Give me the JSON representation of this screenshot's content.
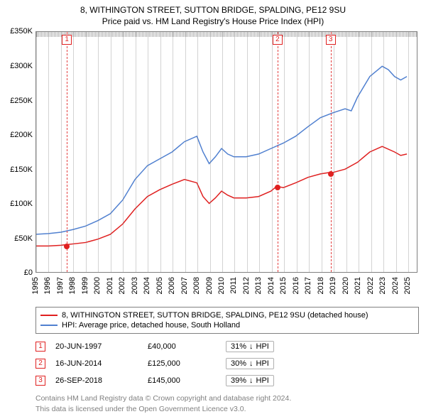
{
  "title": {
    "line1": "8, WITHINGTON STREET, SUTTON BRIDGE, SPALDING, PE12 9SU",
    "line2": "Price paid vs. HM Land Registry's House Price Index (HPI)"
  },
  "chart": {
    "type": "line",
    "background_color": "#ffffff",
    "border_color": "#808080",
    "grid_color": "#808080",
    "xlim": [
      1995,
      2025.8
    ],
    "ylim": [
      0,
      350000
    ],
    "ytick_step": 50000,
    "yticks": [
      "£0",
      "£50K",
      "£100K",
      "£150K",
      "£200K",
      "£250K",
      "£300K",
      "£350K"
    ],
    "xticks": [
      1995,
      1996,
      1997,
      1998,
      1999,
      2000,
      2001,
      2002,
      2003,
      2004,
      2005,
      2006,
      2007,
      2008,
      2009,
      2010,
      2011,
      2012,
      2013,
      2014,
      2015,
      2016,
      2017,
      2018,
      2019,
      2020,
      2021,
      2022,
      2023,
      2024,
      2025
    ],
    "label_fontsize": 11,
    "xlabel_rotation": -90,
    "series": [
      {
        "id": "property",
        "label": "8, WITHINGTON STREET, SUTTON BRIDGE, SPALDING, PE12 9SU (detached house)",
        "color": "#e02020",
        "line_width": 1.5,
        "points": [
          [
            1995,
            38000
          ],
          [
            1996,
            38000
          ],
          [
            1997,
            39000
          ],
          [
            1997.47,
            40000
          ],
          [
            1998,
            41000
          ],
          [
            1999,
            43000
          ],
          [
            2000,
            48000
          ],
          [
            2001,
            55000
          ],
          [
            2002,
            70000
          ],
          [
            2003,
            92000
          ],
          [
            2004,
            110000
          ],
          [
            2005,
            120000
          ],
          [
            2006,
            128000
          ],
          [
            2007,
            135000
          ],
          [
            2008,
            130000
          ],
          [
            2008.5,
            110000
          ],
          [
            2009,
            100000
          ],
          [
            2009.5,
            108000
          ],
          [
            2010,
            118000
          ],
          [
            2010.5,
            112000
          ],
          [
            2011,
            108000
          ],
          [
            2012,
            108000
          ],
          [
            2013,
            110000
          ],
          [
            2014,
            118000
          ],
          [
            2014.46,
            125000
          ],
          [
            2015,
            123000
          ],
          [
            2016,
            130000
          ],
          [
            2017,
            138000
          ],
          [
            2018,
            143000
          ],
          [
            2018.74,
            145000
          ],
          [
            2019,
            145000
          ],
          [
            2020,
            150000
          ],
          [
            2021,
            160000
          ],
          [
            2022,
            175000
          ],
          [
            2023,
            183000
          ],
          [
            2024,
            175000
          ],
          [
            2024.5,
            170000
          ],
          [
            2025,
            172000
          ]
        ]
      },
      {
        "id": "hpi",
        "label": "HPI: Average price, detached house, South Holland",
        "color": "#5080d0",
        "line_width": 1.5,
        "points": [
          [
            1995,
            55000
          ],
          [
            1996,
            56000
          ],
          [
            1997,
            58000
          ],
          [
            1998,
            62000
          ],
          [
            1999,
            67000
          ],
          [
            2000,
            75000
          ],
          [
            2001,
            85000
          ],
          [
            2002,
            105000
          ],
          [
            2003,
            135000
          ],
          [
            2004,
            155000
          ],
          [
            2005,
            165000
          ],
          [
            2006,
            175000
          ],
          [
            2007,
            190000
          ],
          [
            2008,
            198000
          ],
          [
            2008.5,
            175000
          ],
          [
            2009,
            158000
          ],
          [
            2009.5,
            168000
          ],
          [
            2010,
            180000
          ],
          [
            2010.5,
            172000
          ],
          [
            2011,
            168000
          ],
          [
            2012,
            168000
          ],
          [
            2013,
            172000
          ],
          [
            2014,
            180000
          ],
          [
            2015,
            188000
          ],
          [
            2016,
            198000
          ],
          [
            2017,
            212000
          ],
          [
            2018,
            225000
          ],
          [
            2019,
            232000
          ],
          [
            2020,
            238000
          ],
          [
            2020.5,
            235000
          ],
          [
            2021,
            255000
          ],
          [
            2022,
            285000
          ],
          [
            2023,
            300000
          ],
          [
            2023.5,
            295000
          ],
          [
            2024,
            285000
          ],
          [
            2024.5,
            280000
          ],
          [
            2025,
            285000
          ]
        ]
      }
    ],
    "markers": [
      {
        "n": "1",
        "year": 1997.47,
        "value": 40000,
        "color": "#e02020"
      },
      {
        "n": "2",
        "year": 2014.46,
        "value": 125000,
        "color": "#e02020"
      },
      {
        "n": "3",
        "year": 2018.74,
        "value": 145000,
        "color": "#e02020"
      }
    ]
  },
  "legend": [
    {
      "color": "#e02020",
      "label": "8, WITHINGTON STREET, SUTTON BRIDGE, SPALDING, PE12 9SU (detached house)"
    },
    {
      "color": "#5080d0",
      "label": "HPI: Average price, detached house, South Holland"
    }
  ],
  "sales": [
    {
      "n": "1",
      "color": "#e02020",
      "date": "20-JUN-1997",
      "price": "£40,000",
      "pct": "31%",
      "arrow": "↓",
      "vs": "HPI"
    },
    {
      "n": "2",
      "color": "#e02020",
      "date": "16-JUN-2014",
      "price": "£125,000",
      "pct": "30%",
      "arrow": "↓",
      "vs": "HPI"
    },
    {
      "n": "3",
      "color": "#e02020",
      "date": "26-SEP-2018",
      "price": "£145,000",
      "pct": "39%",
      "arrow": "↓",
      "vs": "HPI"
    }
  ],
  "footer": {
    "line1": "Contains HM Land Registry data © Crown copyright and database right 2024.",
    "line2": "This data is licensed under the Open Government Licence v3.0."
  }
}
